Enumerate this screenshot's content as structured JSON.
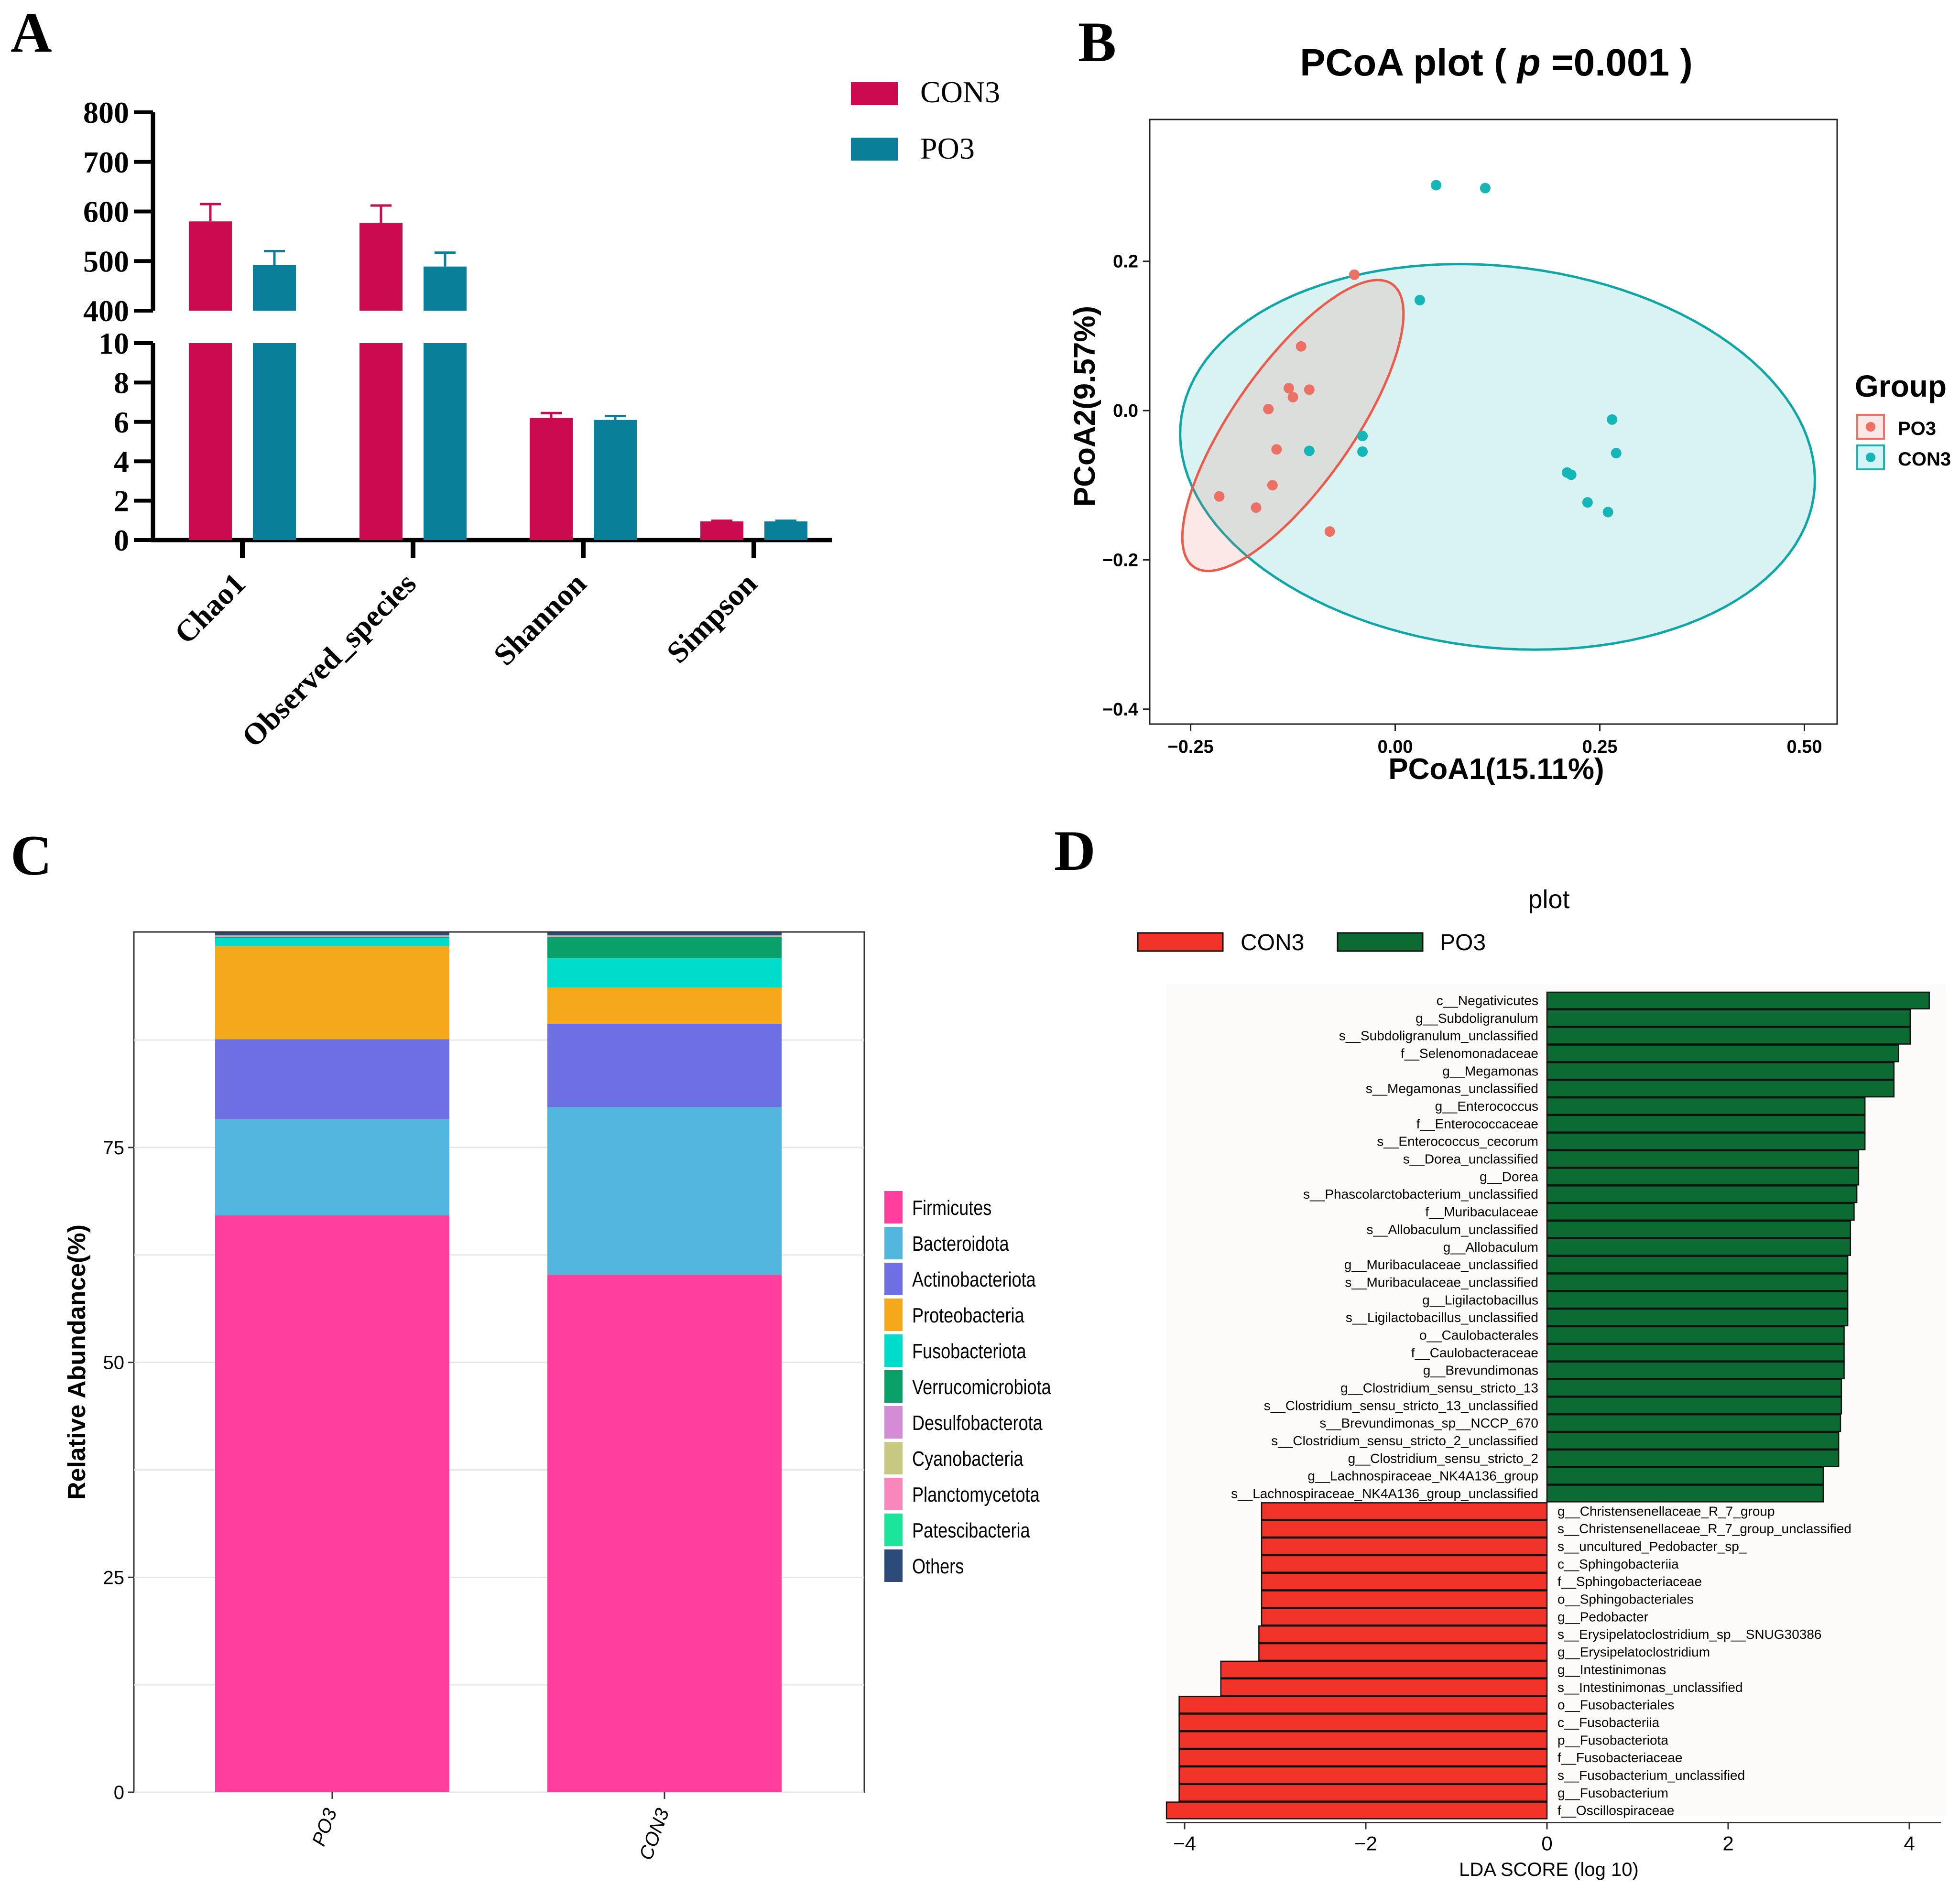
{
  "panel_labels": {
    "a": "A",
    "b": "B",
    "c": "C",
    "d": "D"
  },
  "colors": {
    "con3_a": "#cc0a4f",
    "po3_a": "#0a7f9a",
    "po3_b": "#ec7063",
    "con3_b": "#15b6b7",
    "lda_con3": "#f2332a",
    "lda_po3": "#0c6a33"
  },
  "chart_data": [
    {
      "type": "bar",
      "panel": "A",
      "title": "",
      "categories": [
        "Chao1",
        "Observed_species",
        "Shannon",
        "Simpson"
      ],
      "series": [
        {
          "name": "CON3",
          "values": [
            580,
            577,
            6.2,
            0.95
          ],
          "errors": [
            35,
            35,
            0.25,
            0.03
          ]
        },
        {
          "name": "PO3",
          "values": [
            492,
            489,
            6.1,
            0.95
          ],
          "errors": [
            28,
            28,
            0.2,
            0.03
          ]
        }
      ],
      "y_ticks_upper": [
        "400",
        "500",
        "600",
        "700",
        "800"
      ],
      "y_ticks_lower": [
        "0",
        "2",
        "4",
        "6",
        "8",
        "10"
      ],
      "ylim_upper": [
        400,
        800
      ],
      "ylim_lower": [
        0,
        10
      ],
      "xlabel": "",
      "ylabel": "",
      "legend_position": "top-right"
    },
    {
      "type": "scatter",
      "panel": "B",
      "title_prefix": "PCoA plot ( ",
      "title_p": "p",
      "title_suffix": " =0.001 )",
      "xlabel": "PCoA1(15.11%)",
      "ylabel": "PCoA2(9.57%)",
      "xlim": [
        -0.3,
        0.54
      ],
      "ylim": [
        -0.42,
        0.39
      ],
      "x_ticks": [
        "−0.25",
        "0.00",
        "0.25",
        "0.50"
      ],
      "y_ticks": [
        "−0.4",
        "−0.2",
        "0.0",
        "0.2"
      ],
      "legend_title": "Group",
      "series": [
        {
          "name": "PO3",
          "points": [
            [
              -0.05,
              0.182
            ],
            [
              -0.115,
              0.086
            ],
            [
              -0.13,
              0.03
            ],
            [
              -0.105,
              0.028
            ],
            [
              -0.125,
              0.018
            ],
            [
              -0.155,
              0.002
            ],
            [
              -0.145,
              -0.052
            ],
            [
              -0.15,
              -0.1
            ],
            [
              -0.17,
              -0.13
            ],
            [
              -0.215,
              -0.115
            ],
            [
              -0.08,
              -0.162
            ]
          ]
        },
        {
          "name": "CON3",
          "points": [
            [
              0.05,
              0.302
            ],
            [
              0.11,
              0.298
            ],
            [
              0.03,
              0.148
            ],
            [
              -0.04,
              -0.034
            ],
            [
              -0.04,
              -0.055
            ],
            [
              -0.105,
              -0.054
            ],
            [
              0.21,
              -0.083
            ],
            [
              0.215,
              -0.086
            ],
            [
              0.26,
              -0.136
            ],
            [
              0.235,
              -0.123
            ],
            [
              0.265,
              -0.012
            ],
            [
              0.27,
              -0.057
            ]
          ]
        }
      ]
    },
    {
      "type": "bar",
      "stacked": true,
      "panel": "C",
      "categories": [
        "PO3",
        "CON3"
      ],
      "ylabel": "Relative Abundance(%)",
      "ylim": [
        0,
        100
      ],
      "y_ticks": [
        "0",
        "25",
        "50",
        "75"
      ],
      "series": [
        {
          "name": "Firmicutes",
          "color": "#ff3e9e",
          "values": [
            67.1,
            60.2
          ]
        },
        {
          "name": "Bacteroidota",
          "color": "#52b6de",
          "values": [
            11.2,
            19.5
          ]
        },
        {
          "name": "Actinobacteriota",
          "color": "#6d6fe2",
          "values": [
            9.3,
            9.7
          ]
        },
        {
          "name": "Proteobacteria",
          "color": "#f6a81c",
          "values": [
            10.8,
            4.2
          ]
        },
        {
          "name": "Fusobacteriota",
          "color": "#00dccb",
          "values": [
            1.0,
            3.4
          ]
        },
        {
          "name": "Verrucomicrobiota",
          "color": "#0aa06a",
          "values": [
            0.1,
            2.5
          ]
        },
        {
          "name": "Desulfobacterota",
          "color": "#d38cd5",
          "values": [
            0.05,
            0.05
          ]
        },
        {
          "name": "Cyanobacteria",
          "color": "#c7c983",
          "values": [
            0.05,
            0.05
          ]
        },
        {
          "name": "Planctomycetota",
          "color": "#f987bb",
          "values": [
            0.05,
            0.05
          ]
        },
        {
          "name": "Patescibacteria",
          "color": "#1ae59a",
          "values": [
            0.05,
            0.05
          ]
        },
        {
          "name": "Others",
          "color": "#2c4a7a",
          "values": [
            0.3,
            0.3
          ]
        }
      ],
      "legend_position": "right"
    },
    {
      "type": "bar",
      "orientation": "horizontal",
      "panel": "D",
      "title": "plot",
      "xlabel": "LDA SCORE (log 10)",
      "xlim": [
        -4.3,
        4.3
      ],
      "x_ticks": [
        "−4",
        "−2",
        "0",
        "2",
        "4"
      ],
      "legend": [
        "CON3",
        "PO3"
      ],
      "features": [
        {
          "name": "c__Negativicutes",
          "group": "PO3",
          "value": 4.22
        },
        {
          "name": "g__Subdoligranulum",
          "group": "PO3",
          "value": 4.01
        },
        {
          "name": "s__Subdoligranulum_unclassified",
          "group": "PO3",
          "value": 4.01
        },
        {
          "name": "f__Selenomonadaceae",
          "group": "PO3",
          "value": 3.88
        },
        {
          "name": "g__Megamonas",
          "group": "PO3",
          "value": 3.83
        },
        {
          "name": "s__Megamonas_unclassified",
          "group": "PO3",
          "value": 3.83
        },
        {
          "name": "g__Enterococcus",
          "group": "PO3",
          "value": 3.51
        },
        {
          "name": "f__Enterococcaceae",
          "group": "PO3",
          "value": 3.51
        },
        {
          "name": "s__Enterococcus_cecorum",
          "group": "PO3",
          "value": 3.51
        },
        {
          "name": "s__Dorea_unclassified",
          "group": "PO3",
          "value": 3.44
        },
        {
          "name": "g__Dorea",
          "group": "PO3",
          "value": 3.44
        },
        {
          "name": "s__Phascolarctobacterium_unclassified",
          "group": "PO3",
          "value": 3.42
        },
        {
          "name": "f__Muribaculaceae",
          "group": "PO3",
          "value": 3.39
        },
        {
          "name": "s__Allobaculum_unclassified",
          "group": "PO3",
          "value": 3.35
        },
        {
          "name": "g__Allobaculum",
          "group": "PO3",
          "value": 3.35
        },
        {
          "name": "g__Muribaculaceae_unclassified",
          "group": "PO3",
          "value": 3.32
        },
        {
          "name": "s__Muribaculaceae_unclassified",
          "group": "PO3",
          "value": 3.32
        },
        {
          "name": "g__Ligilactobacillus",
          "group": "PO3",
          "value": 3.32
        },
        {
          "name": "s__Ligilactobacillus_unclassified",
          "group": "PO3",
          "value": 3.32
        },
        {
          "name": "o__Caulobacterales",
          "group": "PO3",
          "value": 3.28
        },
        {
          "name": "f__Caulobacteraceae",
          "group": "PO3",
          "value": 3.28
        },
        {
          "name": "g__Brevundimonas",
          "group": "PO3",
          "value": 3.28
        },
        {
          "name": "g__Clostridium_sensu_stricto_13",
          "group": "PO3",
          "value": 3.25
        },
        {
          "name": "s__Clostridium_sensu_stricto_13_unclassified",
          "group": "PO3",
          "value": 3.25
        },
        {
          "name": "s__Brevundimonas_sp__NCCP_670",
          "group": "PO3",
          "value": 3.24
        },
        {
          "name": "s__Clostridium_sensu_stricto_2_unclassified",
          "group": "PO3",
          "value": 3.22
        },
        {
          "name": "g__Clostridium_sensu_stricto_2",
          "group": "PO3",
          "value": 3.22
        },
        {
          "name": "g__Lachnospiraceae_NK4A136_group",
          "group": "PO3",
          "value": 3.05
        },
        {
          "name": "s__Lachnospiraceae_NK4A136_group_unclassified",
          "group": "PO3",
          "value": 3.05
        },
        {
          "name": "g__Christensenellaceae_R_7_group",
          "group": "CON3",
          "value": -3.15
        },
        {
          "name": "s__Christensenellaceae_R_7_group_unclassified",
          "group": "CON3",
          "value": -3.15
        },
        {
          "name": "s__uncultured_Pedobacter_sp_",
          "group": "CON3",
          "value": -3.15
        },
        {
          "name": "c__Sphingobacteriia",
          "group": "CON3",
          "value": -3.15
        },
        {
          "name": "f__Sphingobacteriaceae",
          "group": "CON3",
          "value": -3.15
        },
        {
          "name": "o__Sphingobacteriales",
          "group": "CON3",
          "value": -3.15
        },
        {
          "name": "g__Pedobacter",
          "group": "CON3",
          "value": -3.15
        },
        {
          "name": "s__Erysipelatoclostridium_sp__SNUG30386",
          "group": "CON3",
          "value": -3.18
        },
        {
          "name": "g__Erysipelatoclostridium",
          "group": "CON3",
          "value": -3.18
        },
        {
          "name": "g__Intestinimonas",
          "group": "CON3",
          "value": -3.6
        },
        {
          "name": "s__Intestinimonas_unclassified",
          "group": "CON3",
          "value": -3.6
        },
        {
          "name": "o__Fusobacteriales",
          "group": "CON3",
          "value": -4.06
        },
        {
          "name": "c__Fusobacteriia",
          "group": "CON3",
          "value": -4.06
        },
        {
          "name": "p__Fusobacteriota",
          "group": "CON3",
          "value": -4.06
        },
        {
          "name": "f__Fusobacteriaceae",
          "group": "CON3",
          "value": -4.06
        },
        {
          "name": "s__Fusobacterium_unclassified",
          "group": "CON3",
          "value": -4.06
        },
        {
          "name": "g__Fusobacterium",
          "group": "CON3",
          "value": -4.06
        },
        {
          "name": "f__Oscillospiraceae",
          "group": "CON3",
          "value": -4.2
        }
      ]
    }
  ]
}
